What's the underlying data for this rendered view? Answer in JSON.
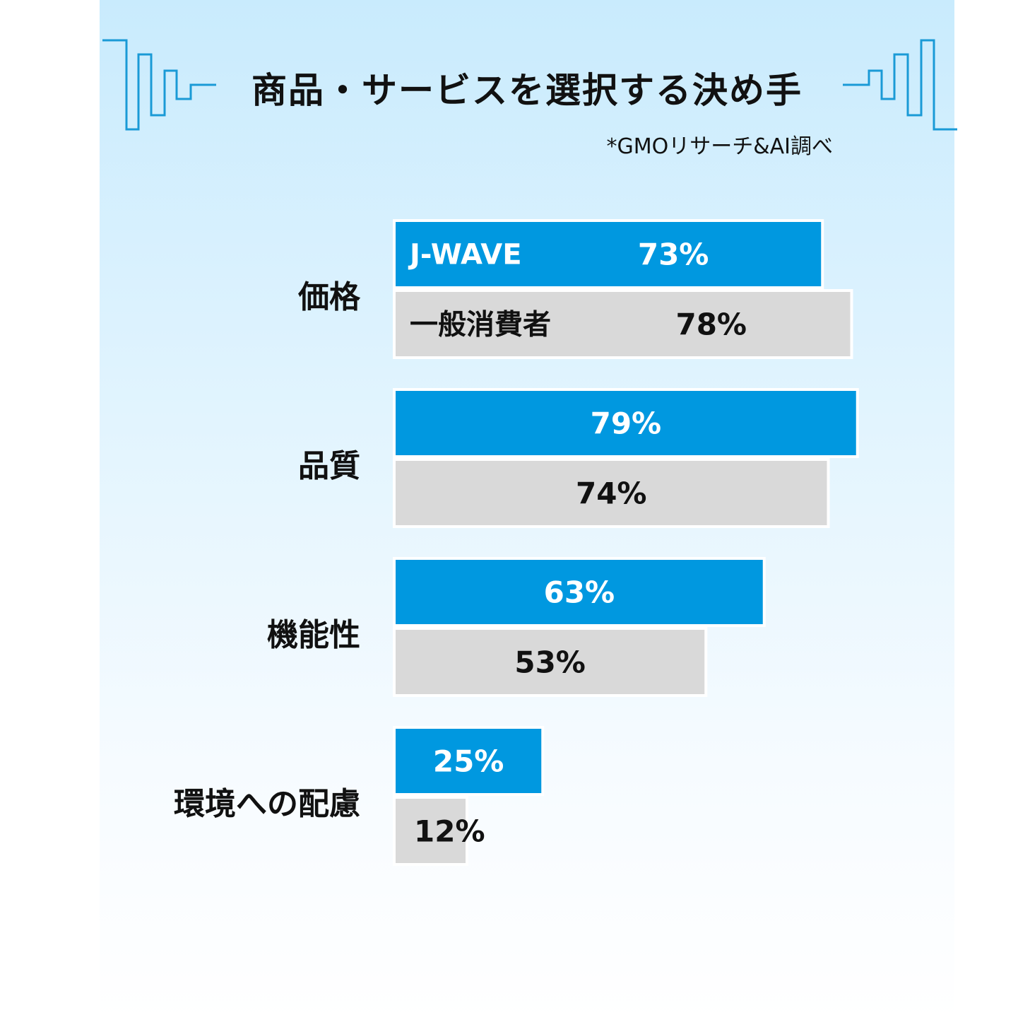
{
  "header": {
    "title": "商品・サービスを選択する決め手",
    "source": "*GMOリサーチ&AI調べ"
  },
  "colors": {
    "jwave": "#0098e0",
    "consumer": "#d9d9d9",
    "deco_line": "#1a9ad6"
  },
  "chart_data": {
    "type": "bar",
    "orientation": "horizontal",
    "title": "商品・サービスを選択する決め手",
    "categories": [
      "価格",
      "品質",
      "機能性",
      "環境への配慮"
    ],
    "series": [
      {
        "name": "J-WAVE",
        "values": [
          73,
          79,
          63,
          25
        ],
        "labels": [
          "73%",
          "79%",
          "63%",
          "25%"
        ]
      },
      {
        "name": "一般消費者",
        "values": [
          78,
          74,
          53,
          12
        ],
        "labels": [
          "78%",
          "74%",
          "53%",
          "12%"
        ]
      }
    ],
    "xlim": [
      0,
      100
    ],
    "grid": false,
    "legend": "inside-first-bars",
    "unit": "%"
  }
}
